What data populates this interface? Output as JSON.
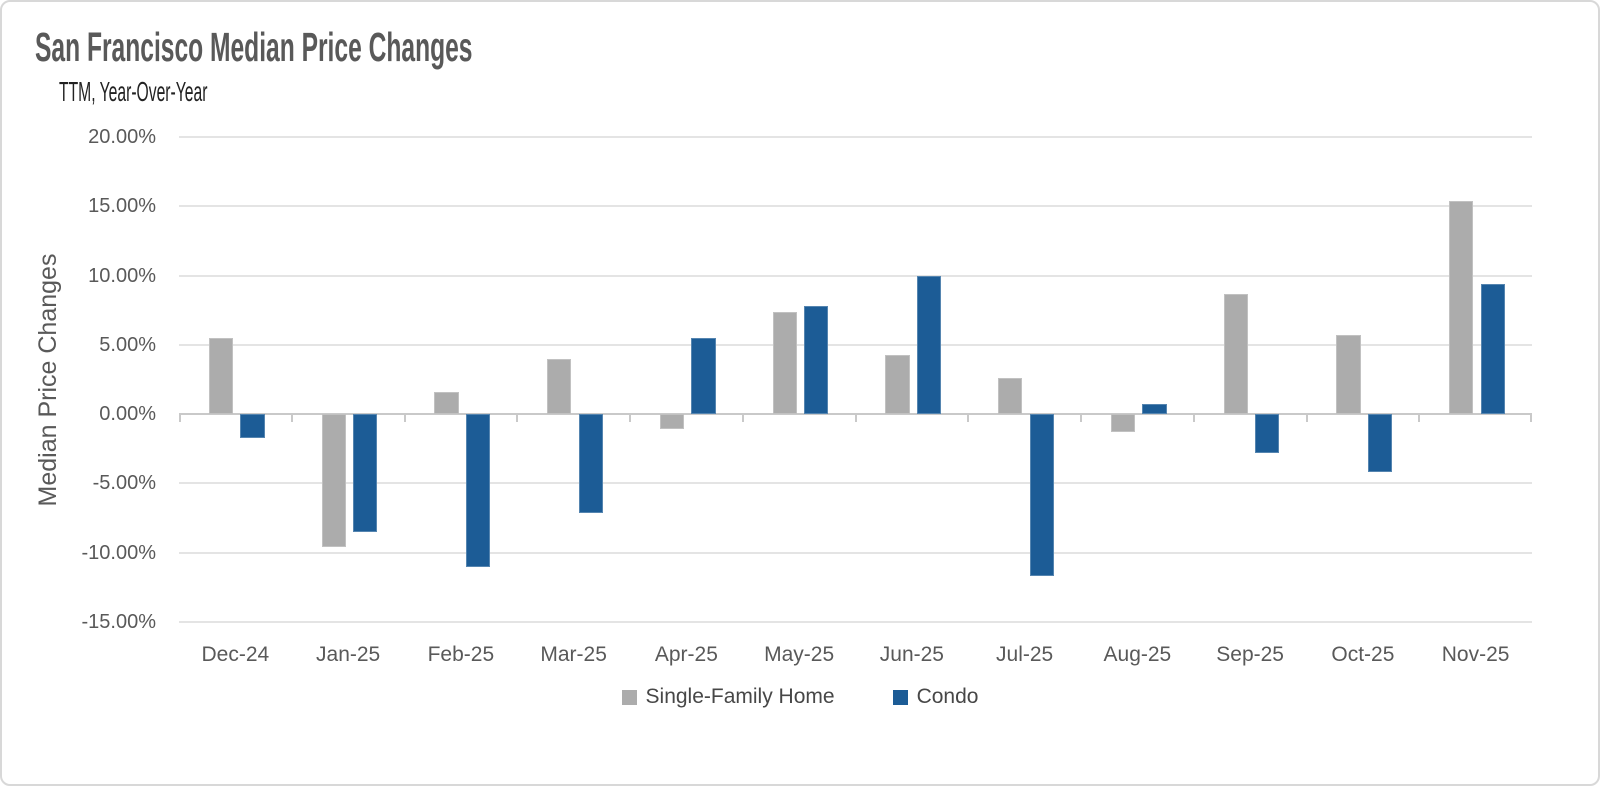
{
  "chart_data": {
    "type": "bar",
    "title": "San Francisco Median Price Changes",
    "subtitle": "TTM, Year-Over-Year",
    "xlabel": "",
    "ylabel": "Median Price Changes",
    "value_unit": "percent",
    "ylim": [
      -15,
      20
    ],
    "grid": true,
    "legend_position": "bottom",
    "y_tick_labels": [
      "20.00%",
      "15.00%",
      "10.00%",
      "5.00%",
      "0.00%",
      "-5.00%",
      "-10.00%",
      "-15.00%"
    ],
    "categories": [
      "Dec-24",
      "Jan-25",
      "Feb-25",
      "Mar-25",
      "Apr-25",
      "May-25",
      "Jun-25",
      "Jul-25",
      "Aug-25",
      "Sep-25",
      "Oct-25",
      "Nov-25"
    ],
    "series": [
      {
        "name": "Single-Family Home",
        "color": "#ACACAC",
        "values": [
          5.5,
          -9.6,
          1.6,
          4.0,
          -1.1,
          7.4,
          4.3,
          2.6,
          -1.3,
          8.7,
          5.7,
          15.4
        ]
      },
      {
        "name": "Condo",
        "color": "#1C5C96",
        "values": [
          -1.7,
          -8.5,
          -11.0,
          -7.1,
          5.5,
          7.8,
          10.0,
          -11.7,
          0.7,
          -2.8,
          -4.2,
          9.4
        ]
      }
    ]
  }
}
